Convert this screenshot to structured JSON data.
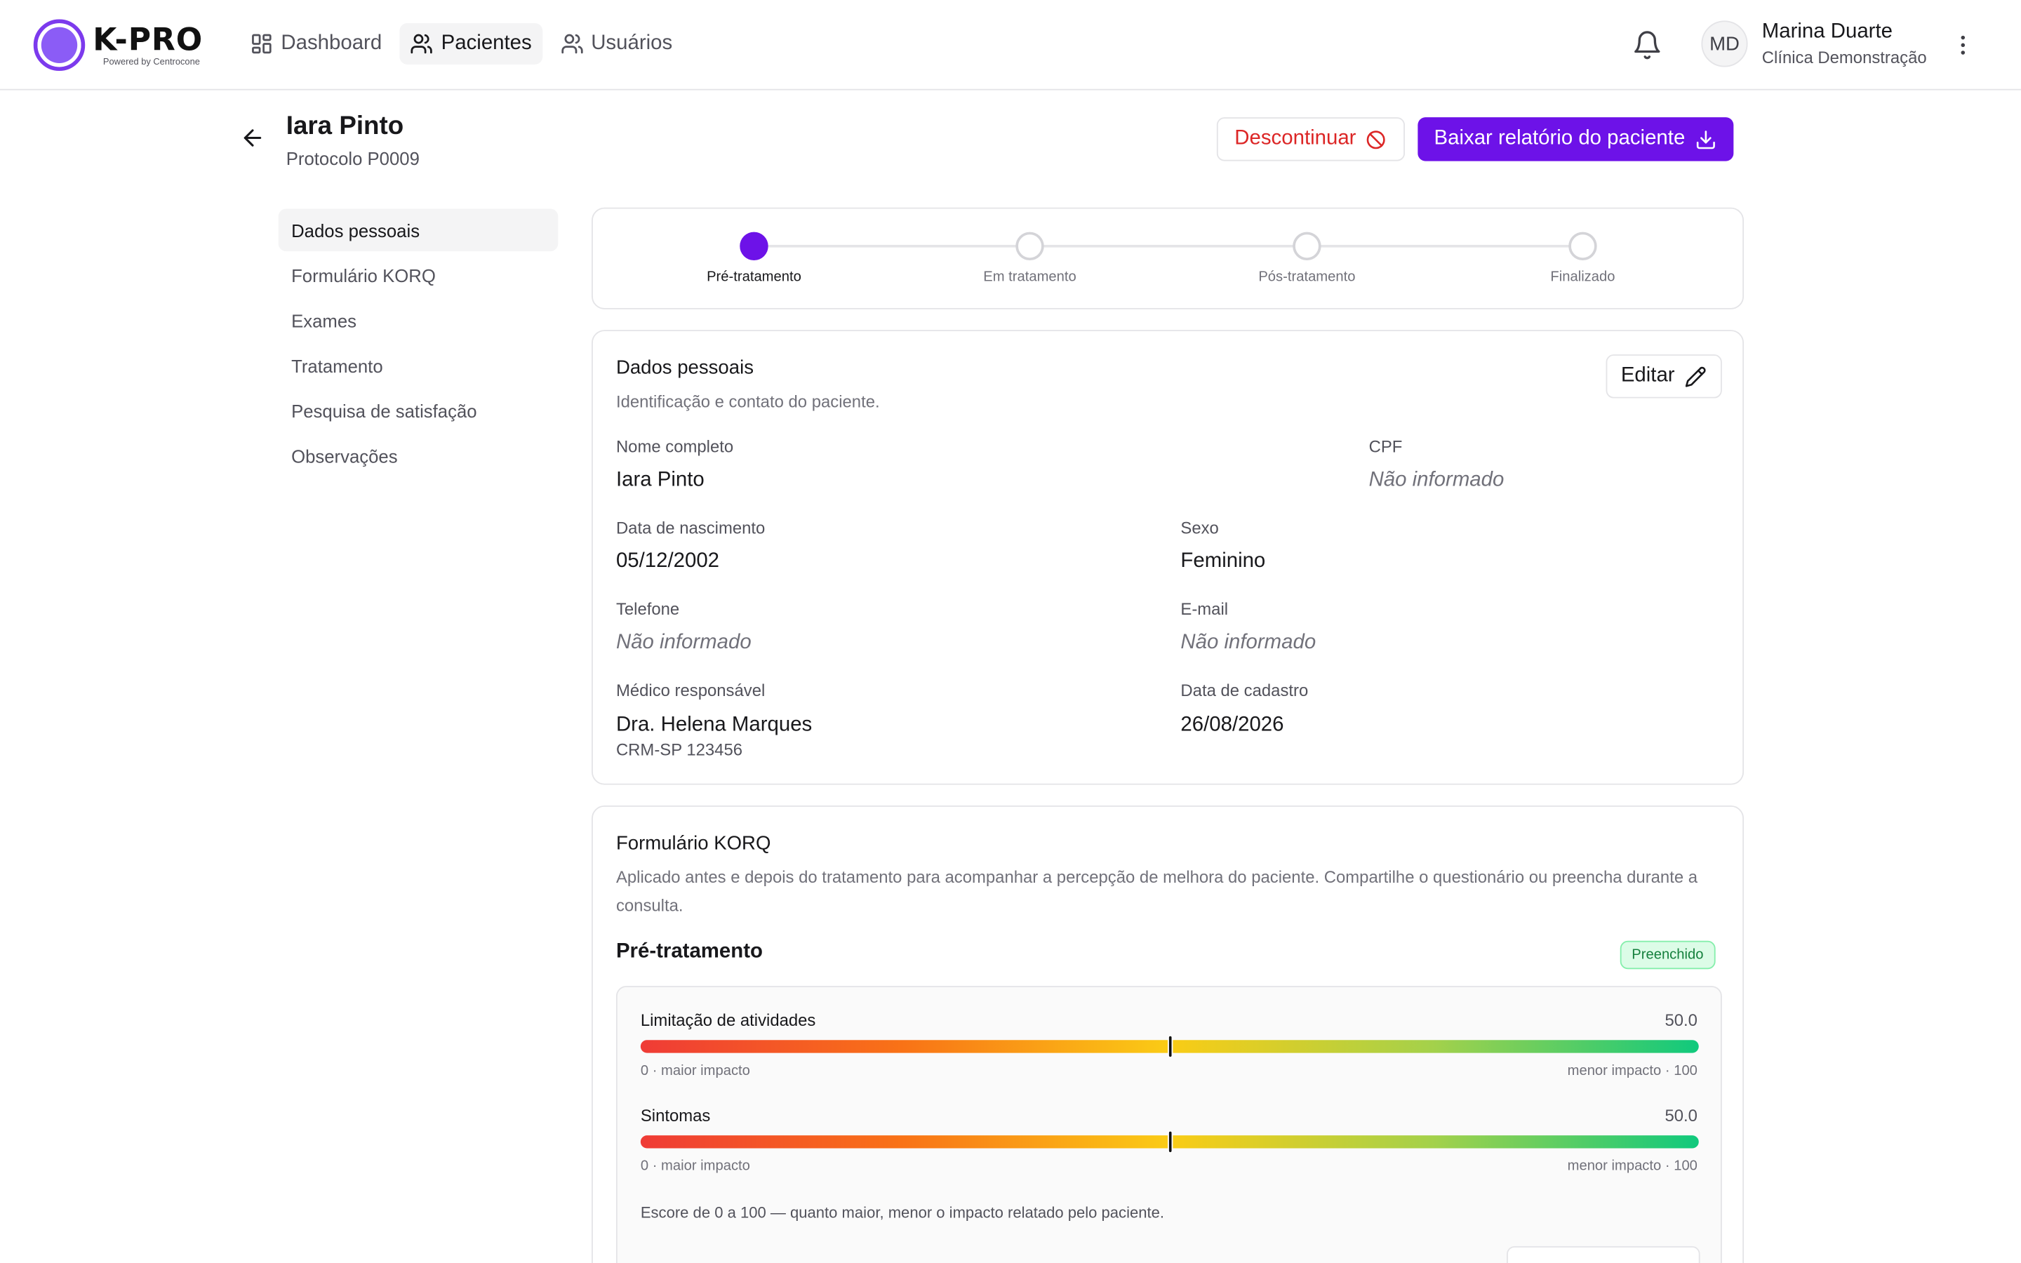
{
  "brand": {
    "name": "K-PRO",
    "tagline": "Powered by Centrocone",
    "accent_color": "#6d12e8",
    "logo_icon": "circle-logo-icon"
  },
  "nav": {
    "items": [
      {
        "label": "Dashboard",
        "icon": "grid-icon",
        "active": false
      },
      {
        "label": "Pacientes",
        "icon": "users-icon",
        "active": true
      },
      {
        "label": "Usuários",
        "icon": "users-icon",
        "active": false
      }
    ]
  },
  "user": {
    "initials": "MD",
    "name": "Marina Duarte",
    "organization": "Clínica Demonstração"
  },
  "patient": {
    "name": "Iara Pinto",
    "protocol": "Protocolo P0009"
  },
  "actions": {
    "discontinue_label": "Descontinuar",
    "report_label": "Baixar relatório do paciente",
    "discontinue_color": "#dc2626"
  },
  "side_menu": {
    "items": [
      {
        "label": "Dados pessoais",
        "active": true
      },
      {
        "label": "Formulário KORQ",
        "active": false
      },
      {
        "label": "Exames",
        "active": false
      },
      {
        "label": "Tratamento",
        "active": false
      },
      {
        "label": "Pesquisa de satisfação",
        "active": false
      },
      {
        "label": "Observações",
        "active": false
      }
    ]
  },
  "stepper": {
    "steps": [
      {
        "label": "Pré-tratamento",
        "current": true
      },
      {
        "label": "Em tratamento",
        "current": false
      },
      {
        "label": "Pós-tratamento",
        "current": false
      },
      {
        "label": "Finalizado",
        "current": false
      }
    ]
  },
  "personal_data": {
    "title": "Dados pessoais",
    "description": "Identificação e contato do paciente.",
    "edit_label": "Editar",
    "fields": {
      "full_name": {
        "label": "Nome completo",
        "value": "Iara Pinto"
      },
      "cpf": {
        "label": "CPF",
        "value": "Não informado"
      },
      "birth_date": {
        "label": "Data de nascimento",
        "value": "05/12/2002"
      },
      "sex": {
        "label": "Sexo",
        "value": "Feminino"
      },
      "phone": {
        "label": "Telefone",
        "value": "Não informado"
      },
      "email": {
        "label": "E-mail",
        "value": "Não informado"
      },
      "doctor": {
        "label": "Médico responsável",
        "value": "Dra. Helena Marques",
        "sub": "CRM-SP 123456"
      },
      "registered": {
        "label": "Data de cadastro",
        "value": "26/08/2026"
      }
    }
  },
  "korq": {
    "title": "Formulário KORQ",
    "description": "Aplicado antes e depois do tratamento para acompanhar a percepção de melhora do paciente. Compartilhe o questionário ou preencha durante a consulta.",
    "phase_title": "Pré-tratamento",
    "status_badge": "Preenchido",
    "scores": [
      {
        "label": "Limitação de atividades",
        "value_text": "50.0",
        "value": 50.0
      },
      {
        "label": "Sintomas",
        "value_text": "50.0",
        "value": 50.0
      }
    ],
    "scale_min_label": "0 · maior impacto",
    "scale_max_label": "menor impacto · 100",
    "note": "Escore de 0 a 100 — quanto maior, menor o impacto relatado pelo paciente."
  }
}
